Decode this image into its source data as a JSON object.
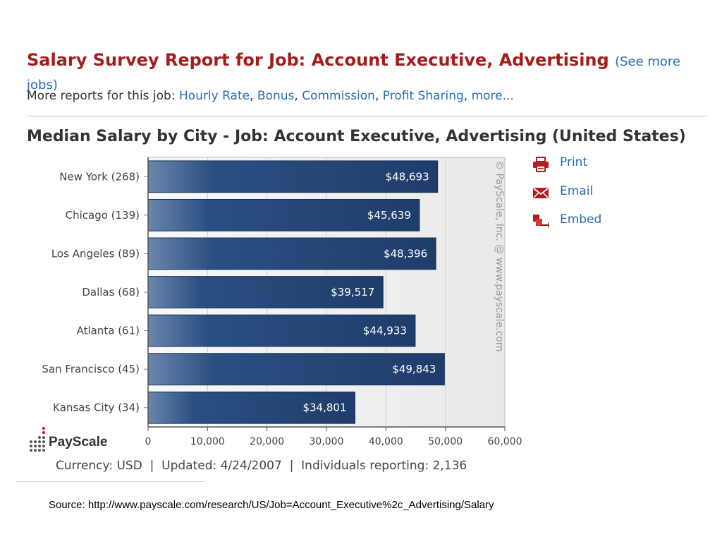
{
  "report": {
    "title": "Salary Survey Report for Job: Account Executive, Advertising",
    "see_more": "(See more jobs)",
    "more_reports_label": "More reports for this job:",
    "links": [
      {
        "label": "Hourly Rate"
      },
      {
        "label": "Bonus"
      },
      {
        "label": "Commission"
      },
      {
        "label": "Profit Sharing"
      },
      {
        "label": "more..."
      }
    ]
  },
  "actions": {
    "print": "Print",
    "email": "Email",
    "embed": "Embed"
  },
  "footer": {
    "text": "Currency: USD  |  Updated: 4/24/2007  |  Individuals reporting: 2,136"
  },
  "source": "Source: http://www.payscale.com/research/US/Job=Account_Executive%2c_Advertising/Salary",
  "logo": {
    "text": "PayScale"
  },
  "colors": {
    "title": "#a51c1c",
    "link": "#2a6bb5",
    "bar_dark": "#1f3d6b",
    "bar_light": "#6a86ad"
  },
  "chart_data": {
    "type": "bar",
    "orientation": "horizontal",
    "title": "Median Salary by City - Job: Account Executive, Advertising (United States)",
    "categories": [
      "New York (268)",
      "Chicago (139)",
      "Los Angeles (89)",
      "Dallas (68)",
      "Atlanta (61)",
      "San Francisco (45)",
      "Kansas City (34)"
    ],
    "values": [
      48693,
      45639,
      48396,
      39517,
      44933,
      49843,
      34801
    ],
    "value_labels": [
      "$48,693",
      "$45,639",
      "$48,396",
      "$39,517",
      "$44,933",
      "$49,843",
      "$34,801"
    ],
    "xlim": [
      0,
      60000
    ],
    "xticks": [
      0,
      10000,
      20000,
      30000,
      40000,
      50000,
      60000
    ],
    "xtick_labels": [
      "0",
      "10,000",
      "20,000",
      "30,000",
      "40,000",
      "50,000",
      "60,000"
    ],
    "watermark": "© PayScale, Inc. @ www.payscale.com",
    "grid": true
  }
}
